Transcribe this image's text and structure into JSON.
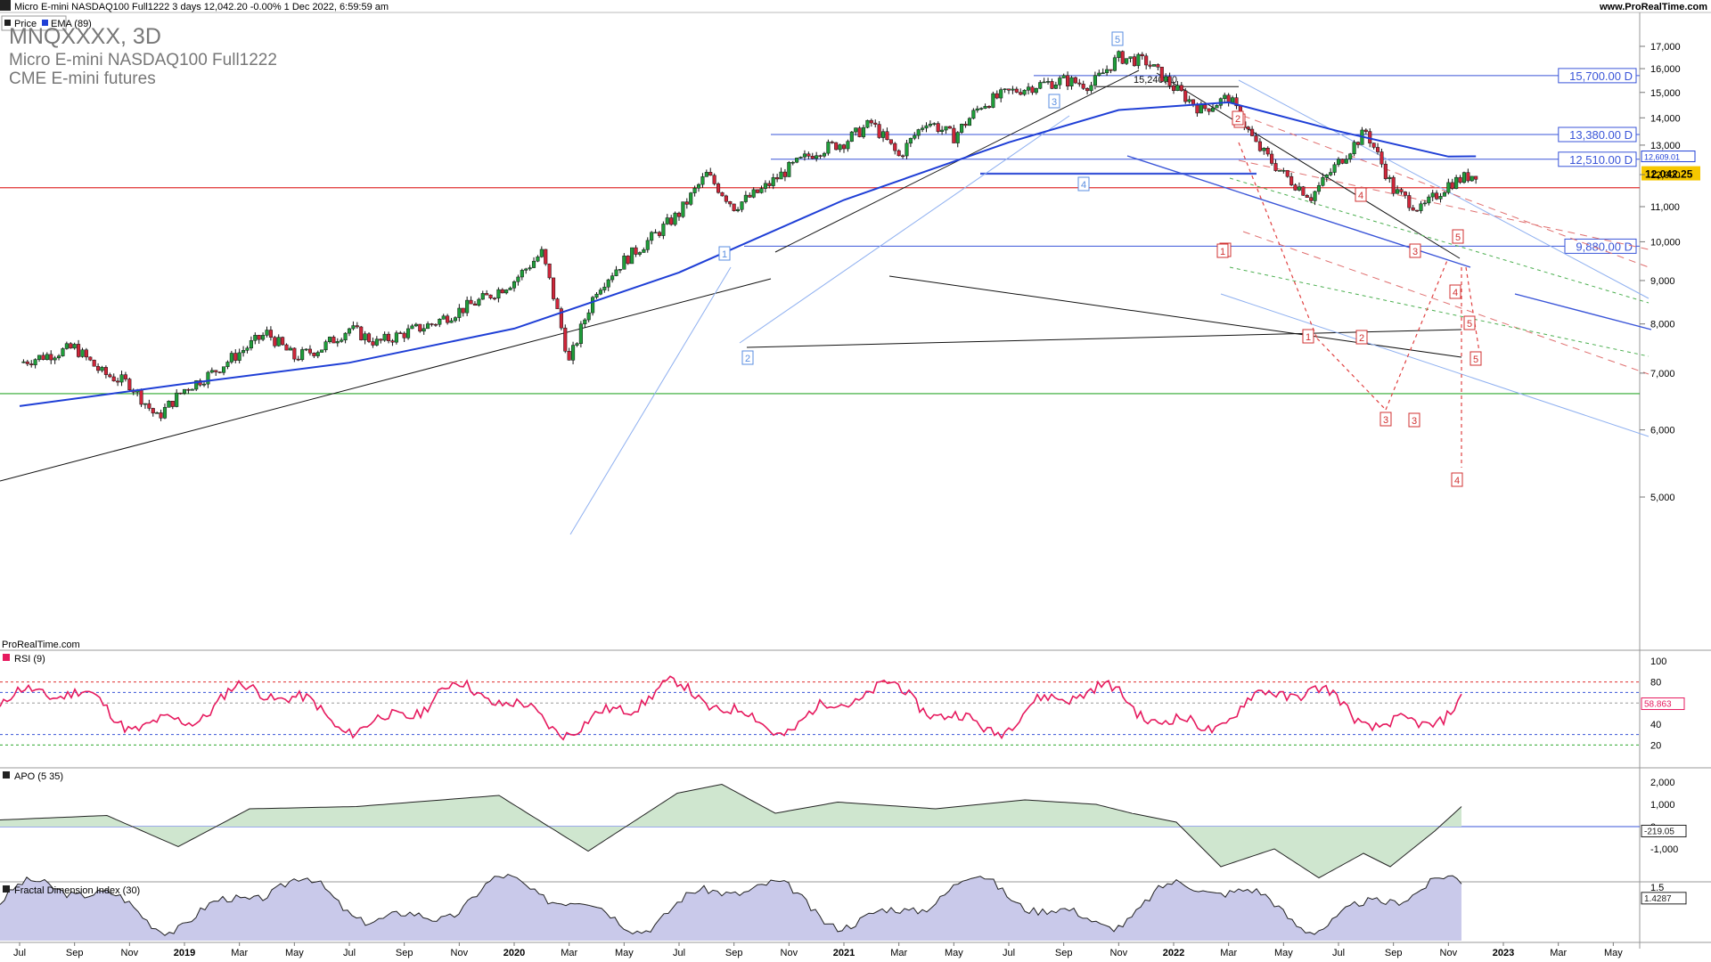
{
  "header": {
    "instrument_line": "Micro E-mini NASDAQ100 Full1222 3 days 12,042.20 -0.00% 1 Dec 2022, 6:59:59 am",
    "site": "www.ProRealTime.com",
    "legend_price": "Price",
    "legend_ema": "EMA (89)",
    "symbol": "MNQXXXX, 3D",
    "name": "Micro E-mini NASDAQ100 Full1222",
    "exchange": "CME E-mini futures",
    "watermark": "ProRealTime.com"
  },
  "colors": {
    "up": "#1f9e3a",
    "down": "#d0263a",
    "ema": "#1f3fd6",
    "rsi": "#e6195e",
    "accent_blue": "#3a55d8",
    "red_line": "#e03030",
    "green_line": "#2fa82f"
  },
  "chart_data": [
    {
      "type": "candlestick",
      "title": "MNQXXXX, 3D",
      "x_ticks": [
        "Jul",
        "Sep",
        "Nov",
        "2019",
        "Mar",
        "May",
        "Jul",
        "Sep",
        "Nov",
        "2020",
        "Mar",
        "May",
        "Jul",
        "Sep",
        "Nov",
        "2021",
        "Mar",
        "May",
        "Jul",
        "Sep",
        "Nov",
        "2022",
        "Mar",
        "May",
        "Jul",
        "Sep",
        "Nov",
        "2023",
        "Mar",
        "May"
      ],
      "y_ticks": [
        "17,000",
        "16,000",
        "15,000",
        "14,000",
        "13,000",
        "12,000",
        "11,000",
        "10,000",
        "9,000",
        "8,000",
        "7,000",
        "6,000",
        "5,000"
      ],
      "ylim": [
        4300,
        17800
      ],
      "series": [
        {
          "name": "Price",
          "close_path": [
            [
              "2018-07",
              7200
            ],
            [
              "2018-08",
              7350
            ],
            [
              "2018-09",
              7500
            ],
            [
              "2018-10",
              7000
            ],
            [
              "2018-11",
              6800
            ],
            [
              "2018-12",
              6200
            ],
            [
              "2019-01",
              6700
            ],
            [
              "2019-02",
              7000
            ],
            [
              "2019-03",
              7400
            ],
            [
              "2019-04",
              7800
            ],
            [
              "2019-05",
              7300
            ],
            [
              "2019-06",
              7500
            ],
            [
              "2019-07",
              7900
            ],
            [
              "2019-08",
              7600
            ],
            [
              "2019-09",
              7800
            ],
            [
              "2019-10",
              8000
            ],
            [
              "2019-11",
              8300
            ],
            [
              "2019-12",
              8600
            ],
            [
              "2020-01",
              9000
            ],
            [
              "2020-02",
              9700
            ],
            [
              "2020-03",
              7200
            ],
            [
              "2020-04",
              8800
            ],
            [
              "2020-05",
              9500
            ],
            [
              "2020-06",
              10100
            ],
            [
              "2020-07",
              10800
            ],
            [
              "2020-08",
              12000
            ],
            [
              "2020-09",
              11000
            ],
            [
              "2020-10",
              11500
            ],
            [
              "2020-11",
              12200
            ],
            [
              "2020-12",
              12800
            ],
            [
              "2021-01",
              13100
            ],
            [
              "2021-02",
              13800
            ],
            [
              "2021-03",
              12600
            ],
            [
              "2021-04",
              13900
            ],
            [
              "2021-05",
              13300
            ],
            [
              "2021-06",
              14500
            ],
            [
              "2021-07",
              15000
            ],
            [
              "2021-08",
              15300
            ],
            [
              "2021-09",
              15500
            ],
            [
              "2021-10",
              15300
            ],
            [
              "2021-11",
              16500
            ],
            [
              "2021-12",
              16300
            ],
            [
              "2022-01",
              15200
            ],
            [
              "2022-02",
              14300
            ],
            [
              "2022-03",
              14800
            ],
            [
              "2022-04",
              13000
            ],
            [
              "2022-05",
              12000
            ],
            [
              "2022-06",
              11300
            ],
            [
              "2022-07",
              12400
            ],
            [
              "2022-08",
              13500
            ],
            [
              "2022-09",
              11500
            ],
            [
              "2022-10",
              10900
            ],
            [
              "2022-11",
              11700
            ],
            [
              "2022-12",
              12042
            ]
          ]
        },
        {
          "name": "EMA (89)",
          "values": [
            [
              "2018-07",
              6400
            ],
            [
              "2019-01",
              6800
            ],
            [
              "2019-07",
              7200
            ],
            [
              "2020-01",
              7900
            ],
            [
              "2020-07",
              9200
            ],
            [
              "2021-01",
              11200
            ],
            [
              "2021-07",
              13100
            ],
            [
              "2021-11",
              14300
            ],
            [
              "2022-03",
              14600
            ],
            [
              "2022-07",
              13500
            ],
            [
              "2022-11",
              12600
            ],
            [
              "2022-12",
              12609
            ]
          ]
        }
      ],
      "levels": [
        {
          "label": "15,700.00 D",
          "value": 15700
        },
        {
          "label": "13,380.00 D",
          "value": 13380
        },
        {
          "label": "12,510.00 D",
          "value": 12510
        },
        {
          "label": "9,880.00 D",
          "value": 9880
        }
      ],
      "price_tag": "12,042.25",
      "ema_tag": "12,609.01",
      "annotation": "15,240.00",
      "wave_labels_blue": [
        "1",
        "2",
        "3",
        "4",
        "5"
      ],
      "wave_labels_red": [
        "1",
        "2",
        "3",
        "4",
        "5",
        "1",
        "2",
        "3",
        "4",
        "5",
        "1",
        "2",
        "3",
        "4",
        "5"
      ]
    },
    {
      "type": "line",
      "title": "RSI (9)",
      "y_ticks": [
        "100",
        "80",
        "60",
        "40",
        "20"
      ],
      "ylim": [
        0,
        100
      ],
      "value_tag": "58.863"
    },
    {
      "type": "area",
      "title": "APO (5 35)",
      "y_ticks": [
        "2,000",
        "1,000",
        "0",
        "-1,000"
      ],
      "value_tag": "-219.05"
    },
    {
      "type": "area",
      "title": "Fractal Dimension Index (30)",
      "y_ticks": [
        "1.5"
      ],
      "value_tag": "1.4287"
    }
  ]
}
